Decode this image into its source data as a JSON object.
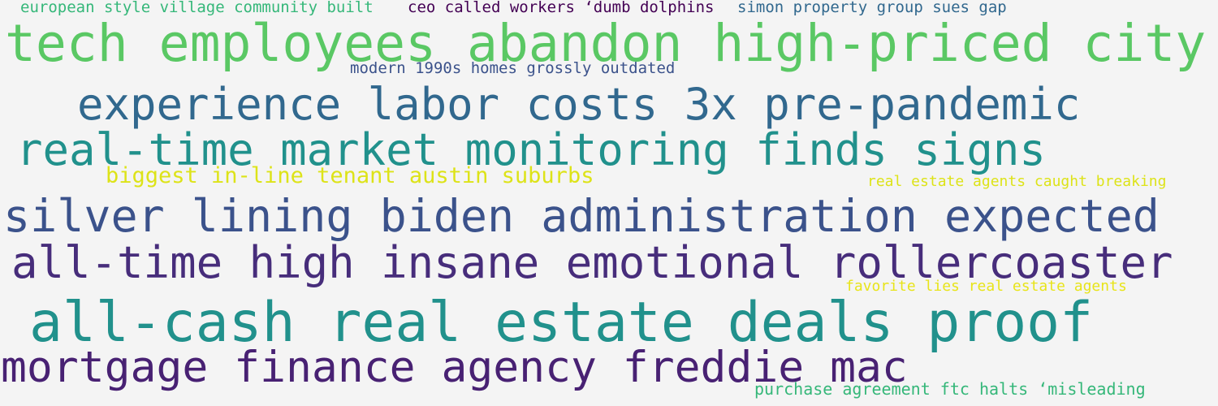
{
  "words": [
    {
      "text": "european style village community built",
      "color": "#35b779"
    },
    {
      "text": "ceo called workers ‘dumb dolphins",
      "color": "#440154"
    },
    {
      "text": "simon property group sues gap",
      "color": "#31688e"
    },
    {
      "text": "tech employees abandon high-priced city",
      "color": "#5ac864"
    },
    {
      "text": "modern 1990s homes grossly outdated",
      "color": "#3b528b"
    },
    {
      "text": "experience labor costs 3x pre-pandemic",
      "color": "#31688e"
    },
    {
      "text": "real-time market monitoring finds signs",
      "color": "#21918c"
    },
    {
      "text": "biggest in-line tenant austin suburbs",
      "color": "#dde318"
    },
    {
      "text": "real estate agents caught breaking",
      "color": "#dde318"
    },
    {
      "text": "silver lining biden administration expected",
      "color": "#3b528b"
    },
    {
      "text": "all-time high insane emotional rollercoaster",
      "color": "#472d7b"
    },
    {
      "text": "favorite lies real estate agents",
      "color": "#e8e419"
    },
    {
      "text": "all-cash real estate deals proof",
      "color": "#21918c"
    },
    {
      "text": "mortgage finance agency freddie mac",
      "color": "#482173"
    },
    {
      "text": "purchase agreement ftc halts ‘misleading",
      "color": "#35b779"
    }
  ]
}
